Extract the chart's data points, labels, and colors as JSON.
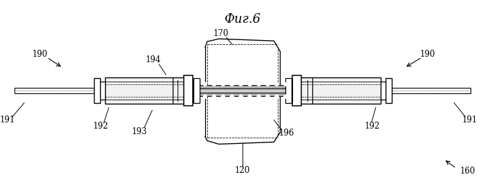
{
  "title": "Фиг.6",
  "background_color": "#ffffff",
  "line_color": "#000000",
  "fig_width": 6.99,
  "fig_height": 2.56,
  "dpi": 100
}
